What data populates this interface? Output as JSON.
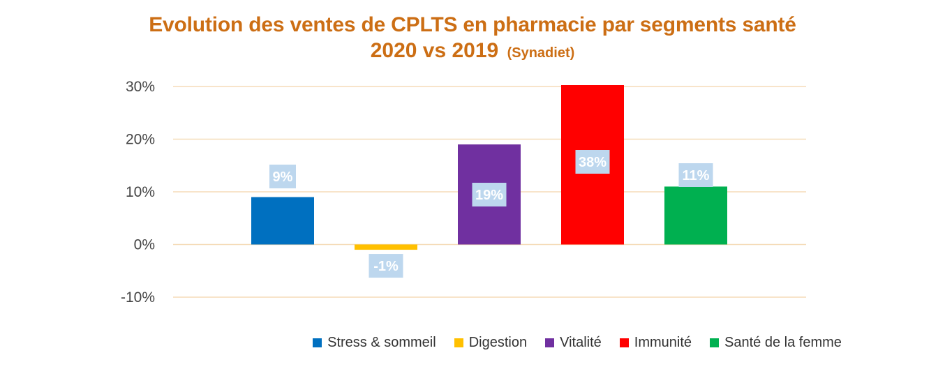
{
  "chart_data": {
    "type": "bar",
    "title": "Evolution des ventes de CPLTS en pharmacie par segments santé",
    "subtitle": "2020 vs 2019",
    "source_note": "(Synadiet)",
    "categories": [
      "Stress & sommeil",
      "Digestion",
      "Vitalité",
      "Immunité",
      "Santé de la femme"
    ],
    "values": [
      9,
      -1,
      19,
      38,
      11
    ],
    "value_labels": [
      "9%",
      "-1%",
      "19%",
      "38%",
      "11%"
    ],
    "colors": [
      "#0070c0",
      "#ffc000",
      "#7030a0",
      "#ff0000",
      "#00b050"
    ],
    "ylim": [
      -10,
      30
    ],
    "yticks": [
      30,
      20,
      10,
      0,
      -10
    ],
    "ytick_labels": [
      "30%",
      "20%",
      "10%",
      "0%",
      "-10%"
    ],
    "xlabel": "",
    "ylabel": "",
    "grid": true,
    "legend_position": "bottom",
    "gridline_color": "#f5dcb8",
    "label_box_color": "#bdd7ee"
  }
}
